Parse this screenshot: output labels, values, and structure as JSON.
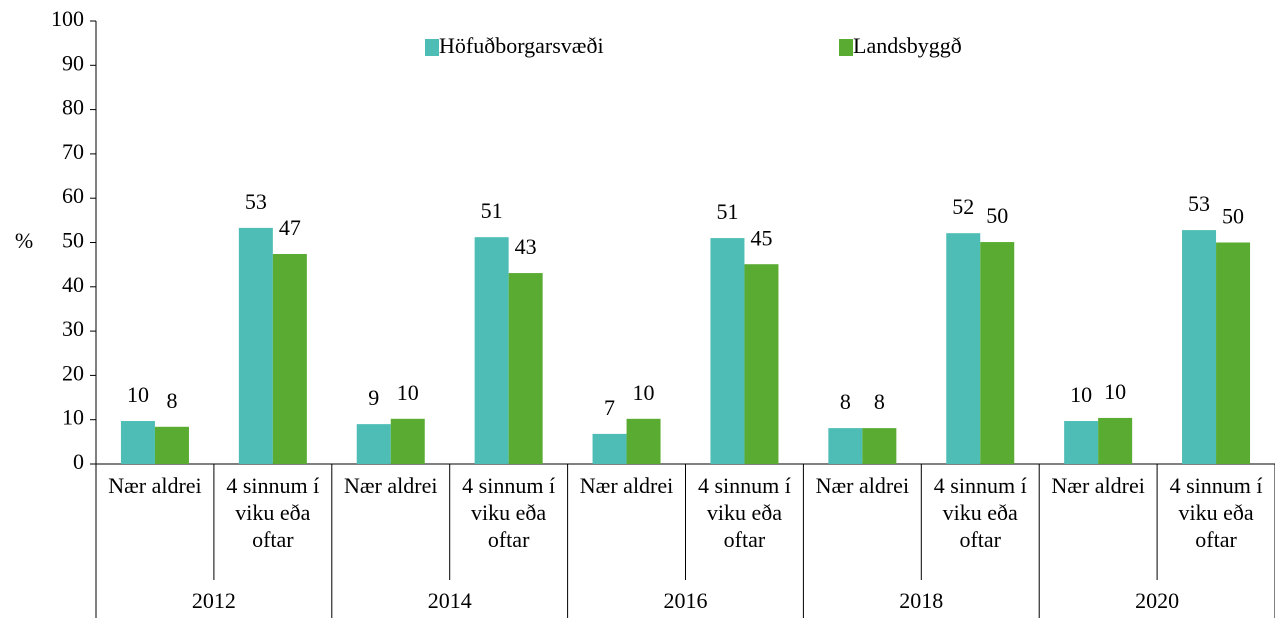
{
  "chart_data": {
    "type": "bar",
    "groups": [
      "2012",
      "2014",
      "2016",
      "2018",
      "2020"
    ],
    "categories": [
      "Nær aldrei",
      "4 sinnum í viku eða oftar",
      "Nær aldrei",
      "4 sinnum í viku eða oftar",
      "Nær aldrei",
      "4 sinnum í viku eða oftar",
      "Nær aldrei",
      "4 sinnum í viku eða oftar",
      "Nær aldrei",
      "4 sinnum í viku eða oftar"
    ],
    "series": [
      {
        "name": "Höfuðborgarsvæði",
        "color": "#4dbdb5",
        "values": [
          9.7,
          53.3,
          9.0,
          51.2,
          6.8,
          51.0,
          8.1,
          52.1,
          9.7,
          52.8
        ],
        "value_labels": [
          "10",
          "53",
          "9",
          "51",
          "7",
          "51",
          "8",
          "52",
          "10",
          "53"
        ]
      },
      {
        "name": "Landsbyggð",
        "color": "#5aab32",
        "values": [
          8.4,
          47.4,
          10.2,
          43.1,
          10.2,
          45.1,
          8.1,
          50.1,
          10.4,
          50.0
        ],
        "value_labels": [
          "8",
          "47",
          "10",
          "43",
          "10",
          "45",
          "8",
          "50",
          "10",
          "50"
        ]
      }
    ],
    "ylabel": "%",
    "ylim": [
      0,
      100
    ],
    "yticks": [
      0,
      10,
      20,
      30,
      40,
      50,
      60,
      70,
      80,
      90,
      100
    ],
    "grid": false,
    "legend": "top"
  }
}
